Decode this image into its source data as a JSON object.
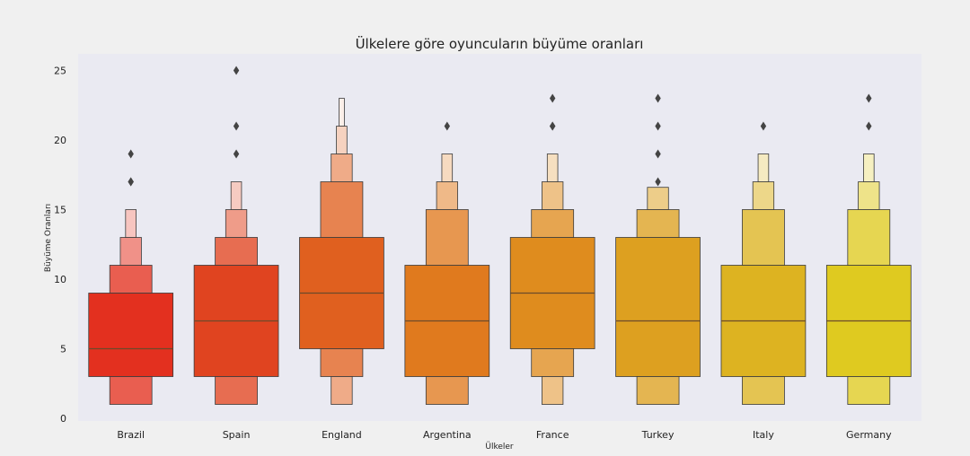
{
  "chart_data": {
    "type": "boxen",
    "title": "Ülkelere göre oyuncuların büyüme oranları",
    "xlabel": "Ülkeler",
    "ylabel": "Büyüme Oranları",
    "ylim": [
      0,
      26
    ],
    "yticks": [
      0,
      5,
      10,
      15,
      20,
      25
    ],
    "grid": false,
    "categories": [
      "Brazil",
      "Spain",
      "England",
      "Argentina",
      "France",
      "Turkey",
      "Italy",
      "Germany"
    ],
    "colors": [
      "#e3301f",
      "#e04420",
      "#e0601f",
      "#e07a1e",
      "#df8c1e",
      "#dda020",
      "#ddb321",
      "#dfca20"
    ],
    "series": [
      {
        "category": "Brazil",
        "median": 5,
        "levels": [
          [
            3,
            9
          ],
          [
            1,
            11
          ],
          [
            1,
            13
          ],
          [
            1,
            15
          ]
        ],
        "outliers": [
          17,
          17,
          19
        ]
      },
      {
        "category": "Spain",
        "median": 7,
        "levels": [
          [
            3,
            11
          ],
          [
            1,
            13
          ],
          [
            1,
            15
          ],
          [
            1,
            17
          ]
        ],
        "outliers": [
          19,
          21,
          25
        ]
      },
      {
        "category": "England",
        "median": 9,
        "levels": [
          [
            5,
            13
          ],
          [
            3,
            17
          ],
          [
            1,
            19
          ],
          [
            1,
            21
          ],
          [
            1,
            23
          ]
        ],
        "outliers": []
      },
      {
        "category": "Argentina",
        "median": 7,
        "levels": [
          [
            3,
            11
          ],
          [
            1,
            15
          ],
          [
            1,
            17
          ],
          [
            1,
            19
          ]
        ],
        "outliers": [
          21
        ]
      },
      {
        "category": "France",
        "median": 9,
        "levels": [
          [
            5,
            13
          ],
          [
            3,
            15
          ],
          [
            1,
            17
          ],
          [
            1,
            19
          ]
        ],
        "outliers": [
          21,
          21,
          23
        ]
      },
      {
        "category": "Turkey",
        "median": 7,
        "levels": [
          [
            3,
            13
          ],
          [
            1,
            15
          ],
          [
            1,
            16.6
          ]
        ],
        "outliers": [
          17,
          19,
          21,
          23
        ]
      },
      {
        "category": "Italy",
        "median": 7,
        "levels": [
          [
            3,
            11
          ],
          [
            1,
            15
          ],
          [
            1,
            17
          ],
          [
            1,
            19
          ]
        ],
        "outliers": [
          21
        ]
      },
      {
        "category": "Germany",
        "median": 7,
        "levels": [
          [
            3,
            11
          ],
          [
            1,
            15
          ],
          [
            1,
            17
          ],
          [
            1,
            19
          ]
        ],
        "outliers": [
          21,
          23
        ]
      }
    ]
  }
}
